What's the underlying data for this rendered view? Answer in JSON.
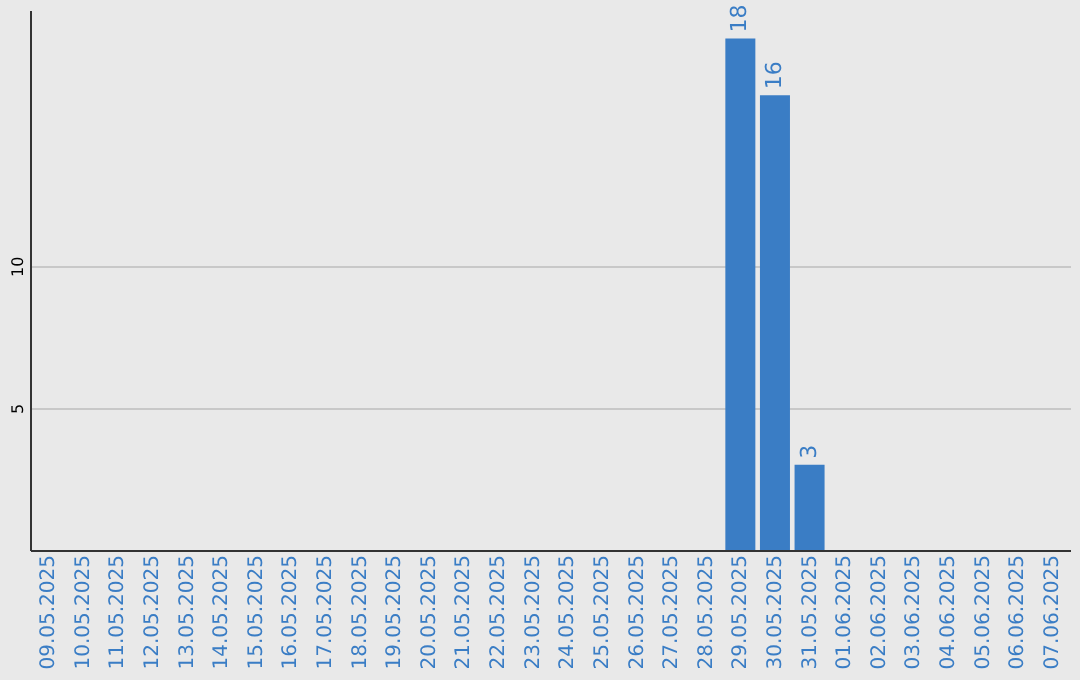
{
  "chart_data": {
    "type": "bar",
    "categories": [
      "09.05.2025",
      "10.05.2025",
      "11.05.2025",
      "12.05.2025",
      "13.05.2025",
      "14.05.2025",
      "15.05.2025",
      "16.05.2025",
      "17.05.2025",
      "18.05.2025",
      "19.05.2025",
      "20.05.2025",
      "21.05.2025",
      "22.05.2025",
      "23.05.2025",
      "24.05.2025",
      "25.05.2025",
      "26.05.2025",
      "27.05.2025",
      "28.05.2025",
      "29.05.2025",
      "30.05.2025",
      "31.05.2025",
      "01.06.2025",
      "02.06.2025",
      "03.06.2025",
      "04.06.2025",
      "05.06.2025",
      "06.06.2025",
      "07.06.2025"
    ],
    "values": [
      null,
      null,
      null,
      null,
      null,
      null,
      null,
      null,
      null,
      null,
      null,
      null,
      null,
      null,
      null,
      null,
      null,
      null,
      null,
      null,
      18,
      16,
      3,
      null,
      null,
      null,
      null,
      null,
      null,
      null
    ],
    "color": "#3a7dc5",
    "ylim": [
      0,
      19
    ],
    "yticks": [
      5,
      10
    ],
    "grid": "y",
    "data_labels": true
  }
}
